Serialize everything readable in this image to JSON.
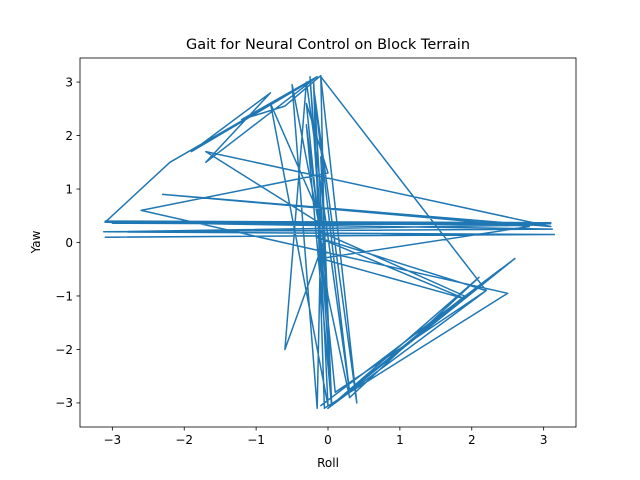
{
  "chart_data": {
    "type": "line",
    "title": "Gait for Neural Control on Block Terrain",
    "xlabel": "Roll",
    "ylabel": "Yaw",
    "xlim": [
      -3.45,
      3.45
    ],
    "ylim": [
      -3.45,
      3.45
    ],
    "xticks": [
      -3,
      -2,
      -1,
      0,
      1,
      2,
      3
    ],
    "yticks": [
      -3,
      -2,
      -1,
      0,
      1,
      2,
      3
    ],
    "grid": false,
    "series": [
      {
        "color": "#1f77b4",
        "x": [
          -3.1,
          3.1,
          -3.1,
          3.1,
          -3.0,
          3.0,
          -3.1,
          2.5,
          -3.1,
          3.15,
          -3.12,
          3.12,
          -3.1,
          -2.2,
          -0.2,
          -1.9,
          -0.8,
          -1.7,
          -0.15,
          -1.2,
          -0.6,
          -0.1,
          -0.05,
          -0.6,
          -0.3,
          0.3,
          -0.2,
          0.4,
          -0.1,
          2.2,
          0.0,
          2.6,
          -0.1,
          2.4,
          0.0,
          1.9,
          -0.1,
          -0.15,
          -0.5,
          -0.12,
          0.0,
          -0.8,
          -0.05,
          0.05,
          -0.25,
          -0.1,
          -1.7,
          3.1,
          -2.3,
          2.8,
          -0.1,
          1.9,
          -0.15,
          2.2,
          0.1,
          -0.3,
          0.0,
          -2.6,
          2.5,
          -0.05,
          -0.2,
          0.0,
          -0.1,
          0.05,
          -0.3,
          0.0,
          0.3,
          2.1,
          0.0
        ],
        "y": [
          0.38,
          0.35,
          0.4,
          0.37,
          0.36,
          0.33,
          0.2,
          0.15,
          0.1,
          0.15,
          0.2,
          0.25,
          0.38,
          1.5,
          3.05,
          1.7,
          2.8,
          1.5,
          3.1,
          2.3,
          2.55,
          3.12,
          0.05,
          -2.0,
          3.0,
          -2.8,
          2.9,
          -3.0,
          3.1,
          -0.9,
          -3.1,
          -0.3,
          -3.05,
          -0.5,
          -3.1,
          -1.0,
          0.2,
          -3.1,
          2.95,
          0.3,
          -3.05,
          2.6,
          0.3,
          -3.0,
          3.1,
          0.35,
          1.7,
          0.3,
          0.9,
          0.3,
          -0.3,
          -1.05,
          0.1,
          -0.9,
          -2.8,
          2.6,
          1.3,
          0.6,
          -0.95,
          -3.1,
          3.0,
          -1.5,
          1.6,
          -3.05,
          2.2,
          -1.0,
          -2.9,
          -0.65,
          -3.1
        ]
      }
    ]
  }
}
